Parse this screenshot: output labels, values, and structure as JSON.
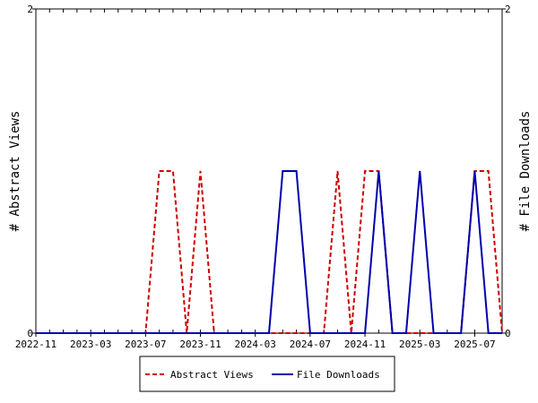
{
  "chart_data": {
    "type": "line",
    "title": "",
    "ylabel_left": "# Abstract Views",
    "ylabel_right": "# File Downloads",
    "ylim": [
      0,
      2
    ],
    "y_ticks_left": [
      "0",
      "2"
    ],
    "y_ticks_right": [
      "0",
      "2"
    ],
    "x_tick_labels": [
      "2022-11",
      "2023-03",
      "2023-07",
      "2023-11",
      "2024-03",
      "2024-07",
      "2024-11",
      "2025-03",
      "2025-07"
    ],
    "x": [
      "2022-11",
      "2022-12",
      "2023-01",
      "2023-02",
      "2023-03",
      "2023-04",
      "2023-05",
      "2023-06",
      "2023-07",
      "2023-08",
      "2023-09",
      "2023-10",
      "2023-11",
      "2023-12",
      "2024-01",
      "2024-02",
      "2024-03",
      "2024-04",
      "2024-05",
      "2024-06",
      "2024-07",
      "2024-08",
      "2024-09",
      "2024-10",
      "2024-11",
      "2024-12",
      "2025-01",
      "2025-02",
      "2025-03",
      "2025-04",
      "2025-05",
      "2025-06",
      "2025-07",
      "2025-08",
      "2025-09"
    ],
    "series": [
      {
        "name": "Abstract Views",
        "color": "#cc0000",
        "dash": true,
        "values": [
          0,
          0,
          0,
          0,
          0,
          0,
          0,
          0,
          0,
          1,
          1,
          0,
          1,
          0,
          0,
          0,
          0,
          0,
          0,
          0,
          0,
          0,
          1,
          0,
          1,
          1,
          0,
          0,
          0,
          0,
          0,
          0,
          1,
          1,
          0
        ]
      },
      {
        "name": "File Downloads",
        "color": "#0000aa",
        "dash": false,
        "values": [
          0,
          0,
          0,
          0,
          0,
          0,
          0,
          0,
          0,
          0,
          0,
          0,
          0,
          0,
          0,
          0,
          0,
          0,
          1,
          1,
          0,
          0,
          0,
          0,
          0,
          1,
          0,
          0,
          1,
          0,
          0,
          0,
          1,
          0,
          0
        ]
      }
    ],
    "legend": {
      "placement": "bottom-center"
    }
  }
}
